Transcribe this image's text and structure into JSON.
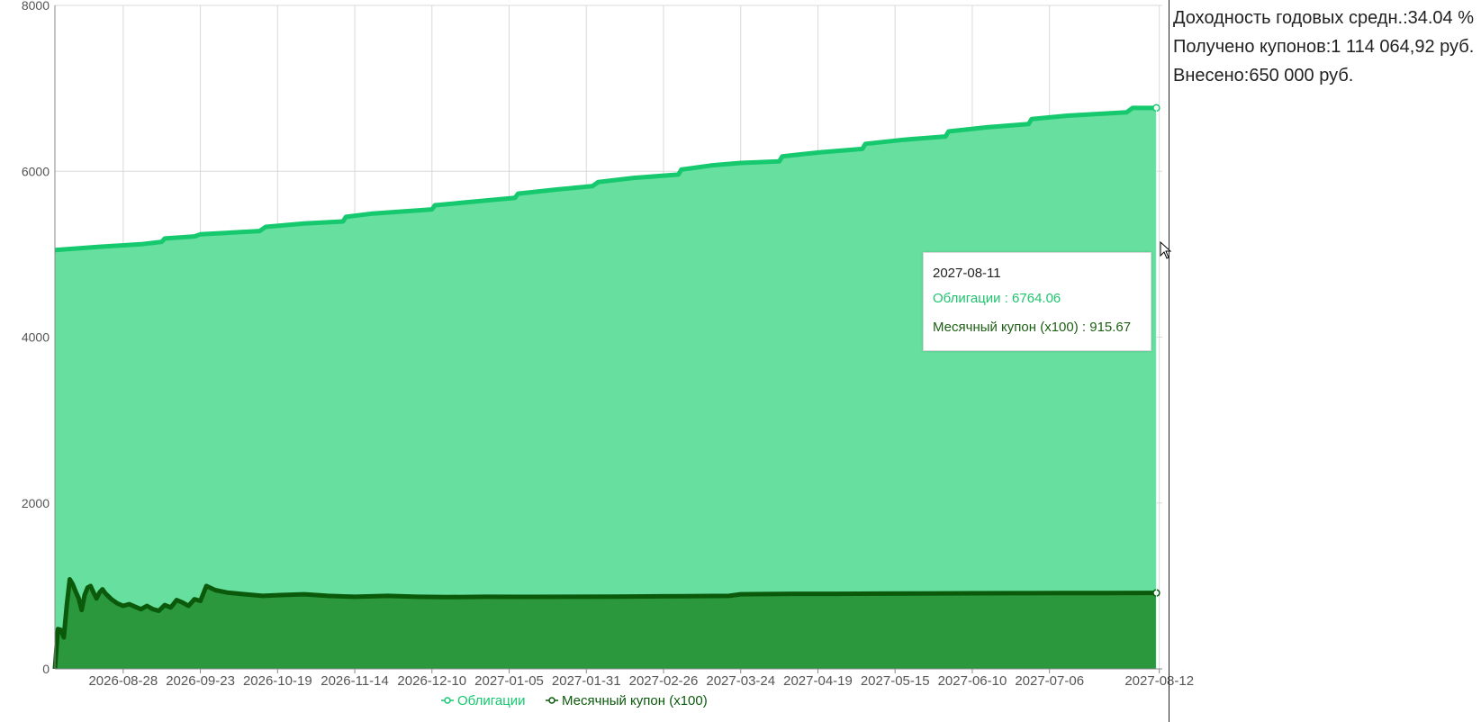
{
  "stats": {
    "yield_label": "Доходность годовых средн.:",
    "yield_value": "34.04 %",
    "coupons_label": "Получено купонов:",
    "coupons_value": "1 114 064,92 руб.",
    "invested_label": "Внесено:",
    "invested_value": "650 000 руб."
  },
  "tooltip": {
    "date": "2027-08-11",
    "series1": "Облигации : 6764.06",
    "series2": "Месячный купон (x100) : 915.67"
  },
  "colors": {
    "bonds_line": "#16c96e",
    "bonds_fill": "#66df9f",
    "coupon_line": "#0b5a0b",
    "coupon_fill": "#2b983d",
    "grid": "#d9d9d9",
    "axis_text": "#555555"
  },
  "chart_data": {
    "type": "area",
    "x_start": "2026-08-05",
    "x_end": "2027-08-13",
    "xticks": [
      "2026-08-28",
      "2026-09-23",
      "2026-10-19",
      "2026-11-14",
      "2026-12-10",
      "2027-01-05",
      "2027-01-31",
      "2027-02-26",
      "2027-03-24",
      "2027-04-19",
      "2027-05-15",
      "2027-06-10",
      "2027-07-06",
      "2027-08-12"
    ],
    "yticks": [
      0,
      2000,
      4000,
      6000,
      8000
    ],
    "ylim": [
      0,
      8000
    ],
    "grid": true,
    "legend_position": "bottom-center",
    "series": [
      {
        "name": "Облигации",
        "points": [
          [
            "2026-08-05",
            5050
          ],
          [
            "2026-08-20",
            5090
          ],
          [
            "2026-09-03",
            5120
          ],
          [
            "2026-09-10",
            5150
          ],
          [
            "2026-09-11",
            5190
          ],
          [
            "2026-09-21",
            5215
          ],
          [
            "2026-09-23",
            5240
          ],
          [
            "2026-10-13",
            5280
          ],
          [
            "2026-10-15",
            5330
          ],
          [
            "2026-10-28",
            5370
          ],
          [
            "2026-11-10",
            5395
          ],
          [
            "2026-11-11",
            5450
          ],
          [
            "2026-11-20",
            5490
          ],
          [
            "2026-12-10",
            5540
          ],
          [
            "2026-12-11",
            5590
          ],
          [
            "2026-12-26",
            5640
          ],
          [
            "2027-01-07",
            5680
          ],
          [
            "2027-01-08",
            5730
          ],
          [
            "2027-01-21",
            5780
          ],
          [
            "2027-02-02",
            5820
          ],
          [
            "2027-02-04",
            5870
          ],
          [
            "2027-02-16",
            5920
          ],
          [
            "2027-03-03",
            5960
          ],
          [
            "2027-03-04",
            6020
          ],
          [
            "2027-03-14",
            6070
          ],
          [
            "2027-03-24",
            6100
          ],
          [
            "2027-04-06",
            6120
          ],
          [
            "2027-04-07",
            6180
          ],
          [
            "2027-04-20",
            6230
          ],
          [
            "2027-05-04",
            6270
          ],
          [
            "2027-05-05",
            6330
          ],
          [
            "2027-05-18",
            6380
          ],
          [
            "2027-06-01",
            6420
          ],
          [
            "2027-06-02",
            6480
          ],
          [
            "2027-06-15",
            6530
          ],
          [
            "2027-06-29",
            6570
          ],
          [
            "2027-06-30",
            6630
          ],
          [
            "2027-07-12",
            6670
          ],
          [
            "2027-08-01",
            6710
          ],
          [
            "2027-08-03",
            6764.06
          ],
          [
            "2027-08-11",
            6764.06
          ]
        ]
      },
      {
        "name": "Месячный купон (x100)",
        "points": [
          [
            "2026-08-05",
            0
          ],
          [
            "2026-08-06",
            480
          ],
          [
            "2026-08-07",
            470
          ],
          [
            "2026-08-08",
            380
          ],
          [
            "2026-08-09",
            770
          ],
          [
            "2026-08-10",
            1080
          ],
          [
            "2026-08-11",
            1020
          ],
          [
            "2026-08-12",
            930
          ],
          [
            "2026-08-13",
            850
          ],
          [
            "2026-08-14",
            710
          ],
          [
            "2026-08-15",
            890
          ],
          [
            "2026-08-16",
            980
          ],
          [
            "2026-08-17",
            1000
          ],
          [
            "2026-08-18",
            920
          ],
          [
            "2026-08-19",
            850
          ],
          [
            "2026-08-20",
            920
          ],
          [
            "2026-08-21",
            960
          ],
          [
            "2026-08-22",
            910
          ],
          [
            "2026-08-24",
            840
          ],
          [
            "2026-08-26",
            790
          ],
          [
            "2026-08-28",
            760
          ],
          [
            "2026-08-30",
            780
          ],
          [
            "2026-09-01",
            750
          ],
          [
            "2026-09-03",
            720
          ],
          [
            "2026-09-05",
            760
          ],
          [
            "2026-09-07",
            720
          ],
          [
            "2026-09-09",
            700
          ],
          [
            "2026-09-11",
            770
          ],
          [
            "2026-09-13",
            740
          ],
          [
            "2026-09-15",
            830
          ],
          [
            "2026-09-17",
            800
          ],
          [
            "2026-09-19",
            760
          ],
          [
            "2026-09-21",
            840
          ],
          [
            "2026-09-23",
            820
          ],
          [
            "2026-09-25",
            1000
          ],
          [
            "2026-09-28",
            950
          ],
          [
            "2026-10-02",
            920
          ],
          [
            "2026-10-08",
            900
          ],
          [
            "2026-10-14",
            880
          ],
          [
            "2026-10-20",
            890
          ],
          [
            "2026-10-28",
            900
          ],
          [
            "2026-11-05",
            880
          ],
          [
            "2026-11-14",
            870
          ],
          [
            "2026-11-25",
            880
          ],
          [
            "2026-12-05",
            870
          ],
          [
            "2026-12-15",
            865
          ],
          [
            "2026-12-28",
            870
          ],
          [
            "2027-01-10",
            868
          ],
          [
            "2027-01-25",
            870
          ],
          [
            "2027-02-10",
            872
          ],
          [
            "2027-02-25",
            875
          ],
          [
            "2027-03-10",
            878
          ],
          [
            "2027-03-20",
            880
          ],
          [
            "2027-03-24",
            900
          ],
          [
            "2027-04-10",
            905
          ],
          [
            "2027-04-25",
            905
          ],
          [
            "2027-05-10",
            908
          ],
          [
            "2027-05-25",
            910
          ],
          [
            "2027-06-10",
            912
          ],
          [
            "2027-06-25",
            913
          ],
          [
            "2027-07-10",
            914
          ],
          [
            "2027-07-25",
            915
          ],
          [
            "2027-08-11",
            915.67
          ]
        ]
      }
    ]
  }
}
